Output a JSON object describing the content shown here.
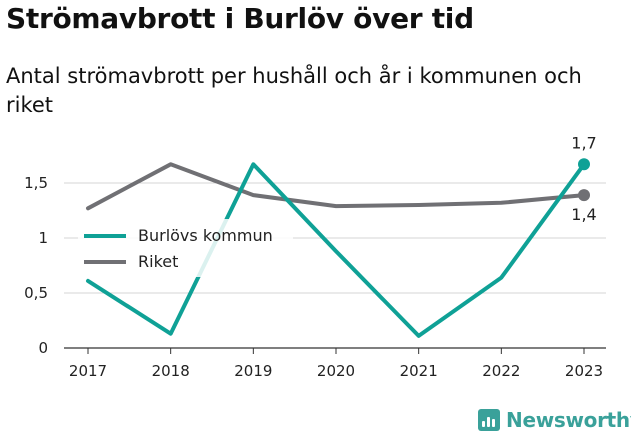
{
  "chart_data": {
    "type": "line",
    "title": "Strömavbrott i Burlöv över tid",
    "subtitle": "Antal strömavbrott per hushåll och år i kommunen och riket",
    "x": [
      "2017",
      "2018",
      "2019",
      "2020",
      "2021",
      "2022",
      "2023"
    ],
    "y_ticks": [
      "0",
      "0,5",
      "1",
      "1,5"
    ],
    "ylim": [
      0,
      1.8
    ],
    "grid": true,
    "legend_position": "left-center",
    "series": [
      {
        "name": "Burlövs kommun",
        "color": "#0fa196",
        "values": [
          0.61,
          0.13,
          1.67,
          0.88,
          0.11,
          0.64,
          1.67
        ],
        "end_label": "1,7"
      },
      {
        "name": "Riket",
        "color": "#707074",
        "values": [
          1.27,
          1.67,
          1.39,
          1.29,
          1.3,
          1.32,
          1.39
        ],
        "end_label": "1,4"
      }
    ]
  },
  "branding": {
    "name": "Newsworthy",
    "color": "#3aa19a"
  }
}
